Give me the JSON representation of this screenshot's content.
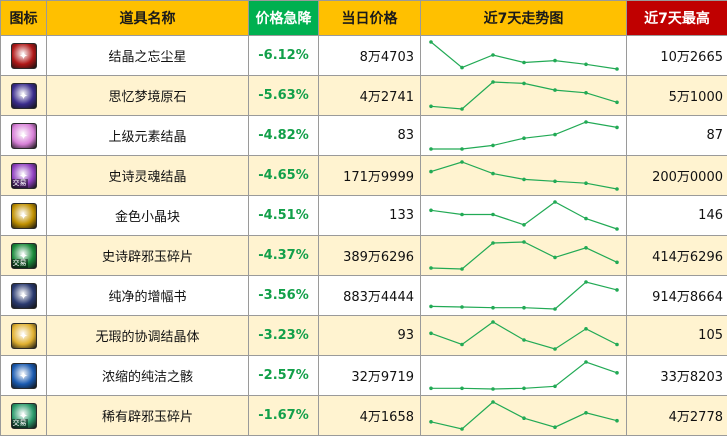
{
  "header": {
    "icon": "图标",
    "name": "道具名称",
    "drop": "价格急降",
    "price": "当日价格",
    "trend": "近7天走势图",
    "max": "近7天最高"
  },
  "colors": {
    "header_gold": "#ffc000",
    "header_green": "#00b050",
    "header_red": "#c00000",
    "row_alt": "#fff3d0",
    "drop_text": "#12a04a",
    "line": "#22aa55"
  },
  "rows": [
    {
      "icon": "red-gem-icon",
      "icon_color": "#b01818",
      "badge": "",
      "name": "结晶之忘尘星",
      "drop": "-6.12%",
      "price": "8万4703",
      "max": "10万2665",
      "trend": [
        100,
        45,
        72,
        56,
        60,
        52,
        42
      ]
    },
    {
      "icon": "purple-blue-crystal-icon",
      "icon_color": "#3a2c8c",
      "badge": "",
      "name": "思忆梦境原石",
      "drop": "-5.63%",
      "price": "4万2741",
      "max": "5万1000",
      "trend": [
        82,
        80,
        100,
        99,
        94,
        92,
        85
      ]
    },
    {
      "icon": "pink-element-icon",
      "icon_color": "#d880d8",
      "badge": "",
      "name": "上级元素结晶",
      "drop": "-4.82%",
      "price": "83",
      "max": "87",
      "trend": [
        72,
        72,
        74,
        78,
        80,
        87,
        84
      ]
    },
    {
      "icon": "purple-soul-icon",
      "icon_color": "#9040c0",
      "badge": "交易",
      "name": "史诗灵魂结晶",
      "drop": "-4.65%",
      "price": "171万9999",
      "max": "200万0000",
      "trend": [
        190,
        200,
        188,
        182,
        180,
        178,
        172
      ]
    },
    {
      "icon": "gold-block-icon",
      "icon_color": "#c09000",
      "badge": "",
      "name": "金色小晶块",
      "drop": "-4.51%",
      "price": "133",
      "max": "146",
      "trend": [
        142,
        140,
        140,
        135,
        146,
        138,
        133
      ]
    },
    {
      "icon": "green-jade-icon",
      "icon_color": "#1a8a3a",
      "badge": "交易",
      "name": "史诗辟邪玉碎片",
      "drop": "-4.37%",
      "price": "389万6296",
      "max": "414万6296",
      "trend": [
        384,
        383,
        410,
        411,
        395,
        405,
        390
      ]
    },
    {
      "icon": "enhance-book-icon",
      "icon_color": "#2a3a70",
      "badge": "",
      "name": "纯净的增幅书",
      "drop": "-3.56%",
      "price": "883万4444",
      "max": "914万8664",
      "trend": [
        878,
        877,
        876,
        876,
        874,
        915,
        903
      ]
    },
    {
      "icon": "harmony-crystal-icon",
      "icon_color": "#e0b030",
      "badge": "",
      "name": "无瑕的协调结晶体",
      "drop": "-3.23%",
      "price": "93",
      "max": "105",
      "trend": [
        99,
        94,
        104,
        96,
        92,
        101,
        94
      ]
    },
    {
      "icon": "blue-skull-icon",
      "icon_color": "#1a5ab0",
      "badge": "",
      "name": "浓缩的纯洁之骸",
      "drop": "-2.57%",
      "price": "32万9719",
      "max": "33万8203",
      "trend": [
        330.4,
        330.4,
        330.2,
        330.4,
        331.0,
        338.2,
        335.0
      ]
    },
    {
      "icon": "rare-jade-icon",
      "icon_color": "#2a9a6a",
      "badge": "交易",
      "name": "稀有辟邪玉碎片",
      "drop": "-1.67%",
      "price": "4万1658",
      "max": "4万2778",
      "trend": [
        41.6,
        41.2,
        42.7,
        41.8,
        41.3,
        42.1,
        41.66
      ]
    }
  ]
}
